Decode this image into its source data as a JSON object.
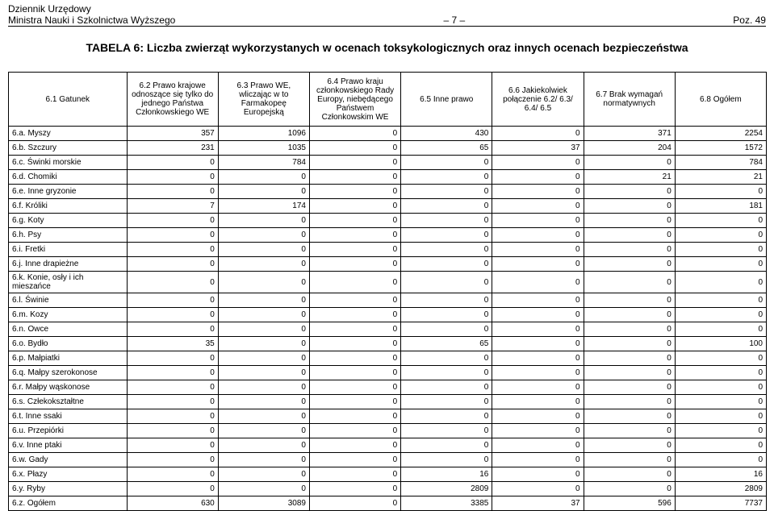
{
  "doc_header": {
    "line1": "Dziennik Urzędowy",
    "line2_left": "Ministra Nauki i Szkolnictwa Wyższego",
    "page_no": "– 7 –",
    "poz": "Poz. 49"
  },
  "title": "TABELA 6: Liczba zwierząt wykorzystanych w ocenach toksykologicznych oraz innych ocenach bezpieczeństwa",
  "columns": [
    "6.1\nGatunek",
    "6.2\nPrawo krajowe odnoszące się tylko do jednego Państwa Członkowskiego WE",
    "6.3\nPrawo WE, wliczając w to Farmakopeę Europejską",
    "6.4\nPrawo kraju członkowskiego Rady Europy, niebędącego Państwem Członkowskim WE",
    "6.5\nInne prawo",
    "6.6\nJakiekolwiek połączenie 6.2/ 6.3/ 6.4/ 6.5",
    "6.7\nBrak wymagań normatywnych",
    "6.8\nOgółem"
  ],
  "rows": [
    {
      "label": "6.a.   Myszy",
      "v": [
        "357",
        "1096",
        "0",
        "430",
        "0",
        "371",
        "2254"
      ]
    },
    {
      "label": "6.b.   Szczury",
      "v": [
        "231",
        "1035",
        "0",
        "65",
        "37",
        "204",
        "1572"
      ]
    },
    {
      "label": "6.c.   Świnki morskie",
      "v": [
        "0",
        "784",
        "0",
        "0",
        "0",
        "0",
        "784"
      ]
    },
    {
      "label": "6.d.   Chomiki",
      "v": [
        "0",
        "0",
        "0",
        "0",
        "0",
        "21",
        "21"
      ]
    },
    {
      "label": "6.e.   Inne gryzonie",
      "v": [
        "0",
        "0",
        "0",
        "0",
        "0",
        "0",
        "0"
      ]
    },
    {
      "label": "6.f.    Króliki",
      "v": [
        "7",
        "174",
        "0",
        "0",
        "0",
        "0",
        "181"
      ]
    },
    {
      "label": "6.g.   Koty",
      "v": [
        "0",
        "0",
        "0",
        "0",
        "0",
        "0",
        "0"
      ]
    },
    {
      "label": "6.h.   Psy",
      "v": [
        "0",
        "0",
        "0",
        "0",
        "0",
        "0",
        "0"
      ]
    },
    {
      "label": "6.i.    Fretki",
      "v": [
        "0",
        "0",
        "0",
        "0",
        "0",
        "0",
        "0"
      ]
    },
    {
      "label": "6.j.    Inne drapieżne",
      "v": [
        "0",
        "0",
        "0",
        "0",
        "0",
        "0",
        "0"
      ]
    },
    {
      "label": "6.k.   Konie, osły i ich mieszańce",
      "v": [
        "0",
        "0",
        "0",
        "0",
        "0",
        "0",
        "0"
      ]
    },
    {
      "label": "6.l.    Świnie",
      "v": [
        "0",
        "0",
        "0",
        "0",
        "0",
        "0",
        "0"
      ]
    },
    {
      "label": "6.m.  Kozy",
      "v": [
        "0",
        "0",
        "0",
        "0",
        "0",
        "0",
        "0"
      ]
    },
    {
      "label": "6.n.   Owce",
      "v": [
        "0",
        "0",
        "0",
        "0",
        "0",
        "0",
        "0"
      ]
    },
    {
      "label": "6.o.   Bydło",
      "v": [
        "35",
        "0",
        "0",
        "65",
        "0",
        "0",
        "100"
      ]
    },
    {
      "label": "6.p.   Małpiatki",
      "v": [
        "0",
        "0",
        "0",
        "0",
        "0",
        "0",
        "0"
      ]
    },
    {
      "label": "6.q.   Małpy szerokonose",
      "v": [
        "0",
        "0",
        "0",
        "0",
        "0",
        "0",
        "0"
      ]
    },
    {
      "label": "6.r.    Małpy wąskonose",
      "v": [
        "0",
        "0",
        "0",
        "0",
        "0",
        "0",
        "0"
      ]
    },
    {
      "label": "6.s.   Człekokształtne",
      "v": [
        "0",
        "0",
        "0",
        "0",
        "0",
        "0",
        "0"
      ]
    },
    {
      "label": "6.t.    Inne ssaki",
      "v": [
        "0",
        "0",
        "0",
        "0",
        "0",
        "0",
        "0"
      ]
    },
    {
      "label": "6.u.   Przepiórki",
      "v": [
        "0",
        "0",
        "0",
        "0",
        "0",
        "0",
        "0"
      ]
    },
    {
      "label": "6.v.   Inne ptaki",
      "v": [
        "0",
        "0",
        "0",
        "0",
        "0",
        "0",
        "0"
      ]
    },
    {
      "label": "6.w.  Gady",
      "v": [
        "0",
        "0",
        "0",
        "0",
        "0",
        "0",
        "0"
      ]
    },
    {
      "label": "6.x.   Płazy",
      "v": [
        "0",
        "0",
        "0",
        "16",
        "0",
        "0",
        "16"
      ]
    },
    {
      "label": "6.y.   Ryby",
      "v": [
        "0",
        "0",
        "0",
        "2809",
        "0",
        "0",
        "2809"
      ]
    },
    {
      "label": "6.z.   Ogółem",
      "v": [
        "630",
        "3089",
        "0",
        "3385",
        "37",
        "596",
        "7737"
      ]
    }
  ]
}
